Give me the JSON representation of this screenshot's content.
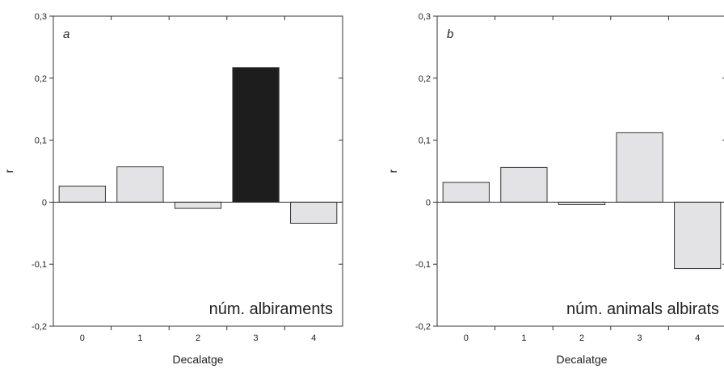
{
  "chart_data": [
    {
      "type": "bar",
      "panel_label": "a",
      "annotation": "núm. albiraments",
      "xlabel": "Decalatge",
      "ylabel": "r",
      "categories": [
        "0",
        "1",
        "2",
        "3",
        "4"
      ],
      "values": [
        0.026,
        0.057,
        -0.01,
        0.217,
        -0.034
      ],
      "highlight_index": 3,
      "ylim": [
        -0.2,
        0.3
      ],
      "yticks": [
        "-0,2",
        "-0,1",
        "0",
        "0,1",
        "0,2",
        "0,3"
      ],
      "bar_color": "#e3e3e5",
      "highlight_color": "#1d1d1d",
      "grid": false
    },
    {
      "type": "bar",
      "panel_label": "b",
      "annotation": "núm. animals albirats",
      "xlabel": "Decalatge",
      "ylabel": "r",
      "categories": [
        "0",
        "1",
        "2",
        "3",
        "4"
      ],
      "values": [
        0.032,
        0.056,
        -0.004,
        0.112,
        -0.107
      ],
      "highlight_index": null,
      "ylim": [
        -0.2,
        0.3
      ],
      "yticks": [
        "-0,2",
        "-0,1",
        "0",
        "0,1",
        "0,2",
        "0,3"
      ],
      "bar_color": "#e3e3e5",
      "highlight_color": "#1d1d1d",
      "grid": false
    }
  ]
}
